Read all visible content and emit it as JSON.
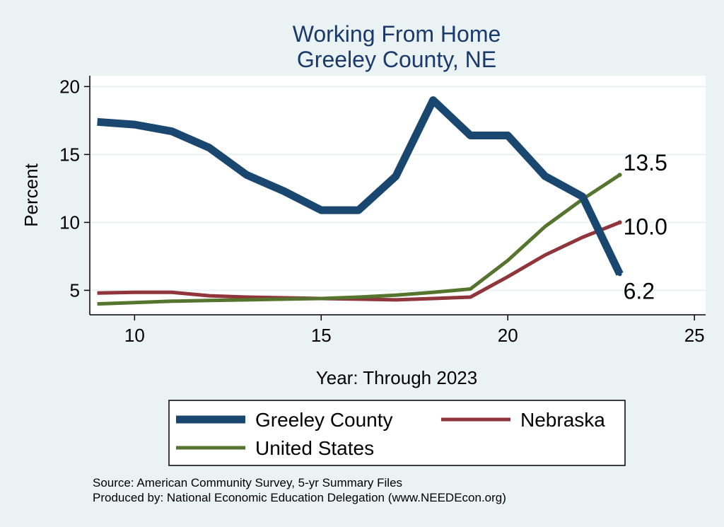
{
  "chart_data": {
    "type": "line",
    "title": "Working From Home",
    "subtitle": "Greeley County, NE",
    "xlabel": "Year: Through 2023",
    "ylabel": "Percent",
    "xlim": [
      8.8,
      25.3
    ],
    "ylim": [
      3.2,
      20.8
    ],
    "x_ticks": [
      10,
      15,
      20,
      25
    ],
    "y_ticks": [
      5,
      10,
      15,
      20
    ],
    "grid": true,
    "legend_position": "bottom",
    "series": [
      {
        "name": "Greeley County",
        "color": "#1a476f",
        "x": [
          9,
          10,
          11,
          12,
          13,
          14,
          15,
          16,
          17,
          18,
          19,
          20,
          21,
          22,
          23
        ],
        "values": [
          17.4,
          17.2,
          16.7,
          15.5,
          13.5,
          12.3,
          10.9,
          10.9,
          13.4,
          19.0,
          16.4,
          16.4,
          13.4,
          11.9,
          6.2
        ]
      },
      {
        "name": "Nebraska",
        "color": "#90353b",
        "x": [
          9,
          10,
          11,
          12,
          13,
          14,
          15,
          16,
          17,
          18,
          19,
          20,
          21,
          22,
          23
        ],
        "values": [
          4.8,
          4.85,
          4.85,
          4.6,
          4.5,
          4.45,
          4.4,
          4.35,
          4.3,
          4.4,
          4.5,
          6.0,
          7.6,
          8.9,
          10.0
        ]
      },
      {
        "name": "United States",
        "color": "#55752f",
        "x": [
          9,
          10,
          11,
          12,
          13,
          14,
          15,
          16,
          17,
          18,
          19,
          20,
          21,
          22,
          23
        ],
        "values": [
          4.0,
          4.1,
          4.2,
          4.25,
          4.3,
          4.35,
          4.4,
          4.5,
          4.65,
          4.85,
          5.1,
          7.2,
          9.7,
          11.7,
          13.5
        ]
      }
    ],
    "end_labels": [
      {
        "series": "United States",
        "text": "13.5"
      },
      {
        "series": "Nebraska",
        "text": "10.0"
      },
      {
        "series": "Greeley County",
        "text": "6.2"
      }
    ],
    "notes": [
      "Source: American Community Survey, 5-yr Summary Files",
      "Produced by: National Economic Education Delegation (www.NEEDEcon.org)"
    ]
  }
}
